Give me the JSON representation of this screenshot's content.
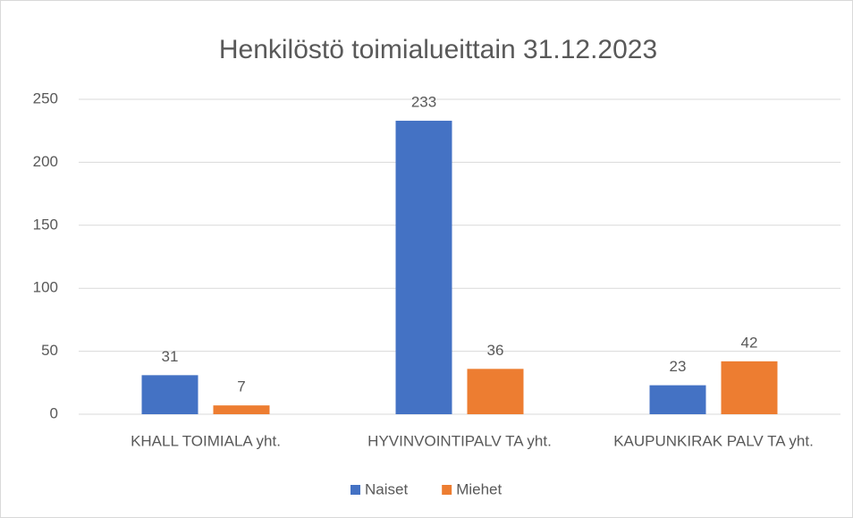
{
  "chart_data": {
    "type": "bar",
    "title": "Henkilöstö toimialueittain 31.12.2023",
    "categories": [
      "KHALL TOIMIALA yht.",
      "HYVINVOINTIPALV TA yht.",
      "KAUPUNKIRAK PALV TA yht."
    ],
    "series": [
      {
        "name": "Naiset",
        "color": "#4472c4",
        "values": [
          31,
          233,
          23
        ]
      },
      {
        "name": "Miehet",
        "color": "#ed7d31",
        "values": [
          7,
          36,
          42
        ]
      }
    ],
    "ylim": [
      0,
      250
    ],
    "yticks": [
      0,
      50,
      100,
      150,
      200,
      250
    ],
    "grid": true,
    "legend": "bottom"
  }
}
